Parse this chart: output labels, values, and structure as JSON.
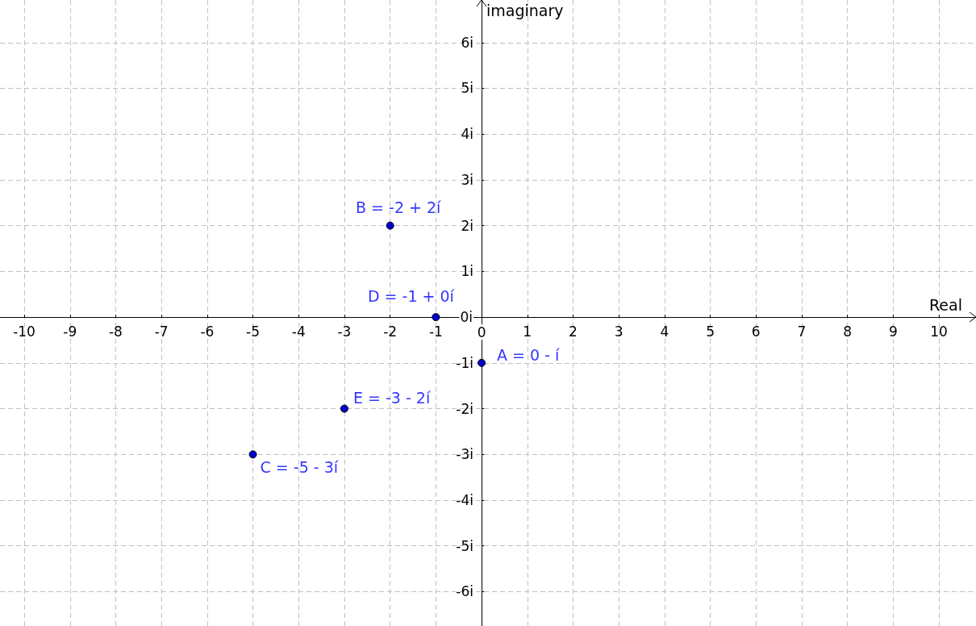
{
  "chart_data": {
    "type": "scatter",
    "xlabel": "Real",
    "ylabel": "imaginary",
    "x": [
      0,
      -2,
      -5,
      -1,
      -3
    ],
    "series": [
      {
        "color": "#0000cc",
        "values": [
          -1,
          2,
          -3,
          0,
          -2
        ]
      }
    ],
    "marker": "circle",
    "xlim": [
      -10.53,
      10.81
    ],
    "ylim": [
      -6.75,
      6.93
    ],
    "xticks": [
      -10,
      -9,
      -8,
      -7,
      -6,
      -5,
      -4,
      -3,
      -2,
      -1,
      0,
      1,
      2,
      3,
      4,
      5,
      6,
      7,
      8,
      9,
      10
    ],
    "yticks": [
      {
        "value": -6,
        "label": "-6i"
      },
      {
        "value": -5,
        "label": "-5i"
      },
      {
        "value": -4,
        "label": "-4i"
      },
      {
        "value": -3,
        "label": "-3i"
      },
      {
        "value": -2,
        "label": "-2i"
      },
      {
        "value": -1,
        "label": "-1i"
      },
      {
        "value": 0,
        "label": "0i"
      },
      {
        "value": 1,
        "label": "1i"
      },
      {
        "value": 2,
        "label": "2i"
      },
      {
        "value": 3,
        "label": "3i"
      },
      {
        "value": 4,
        "label": "4i"
      },
      {
        "value": 5,
        "label": "5i"
      },
      {
        "value": 6,
        "label": "6i"
      }
    ],
    "grid": true,
    "annotations": [
      {
        "text": "A = 0 - í",
        "x": 0,
        "y": -1
      },
      {
        "text": "B = -2 + 2í",
        "x": -2,
        "y": 2
      },
      {
        "text": "C = -5 - 3í",
        "x": -5,
        "y": -3
      },
      {
        "text": "D = -1 + 0í",
        "x": -1,
        "y": 0
      },
      {
        "text": "E = -3 - 2í",
        "x": -3,
        "y": -2
      }
    ]
  }
}
